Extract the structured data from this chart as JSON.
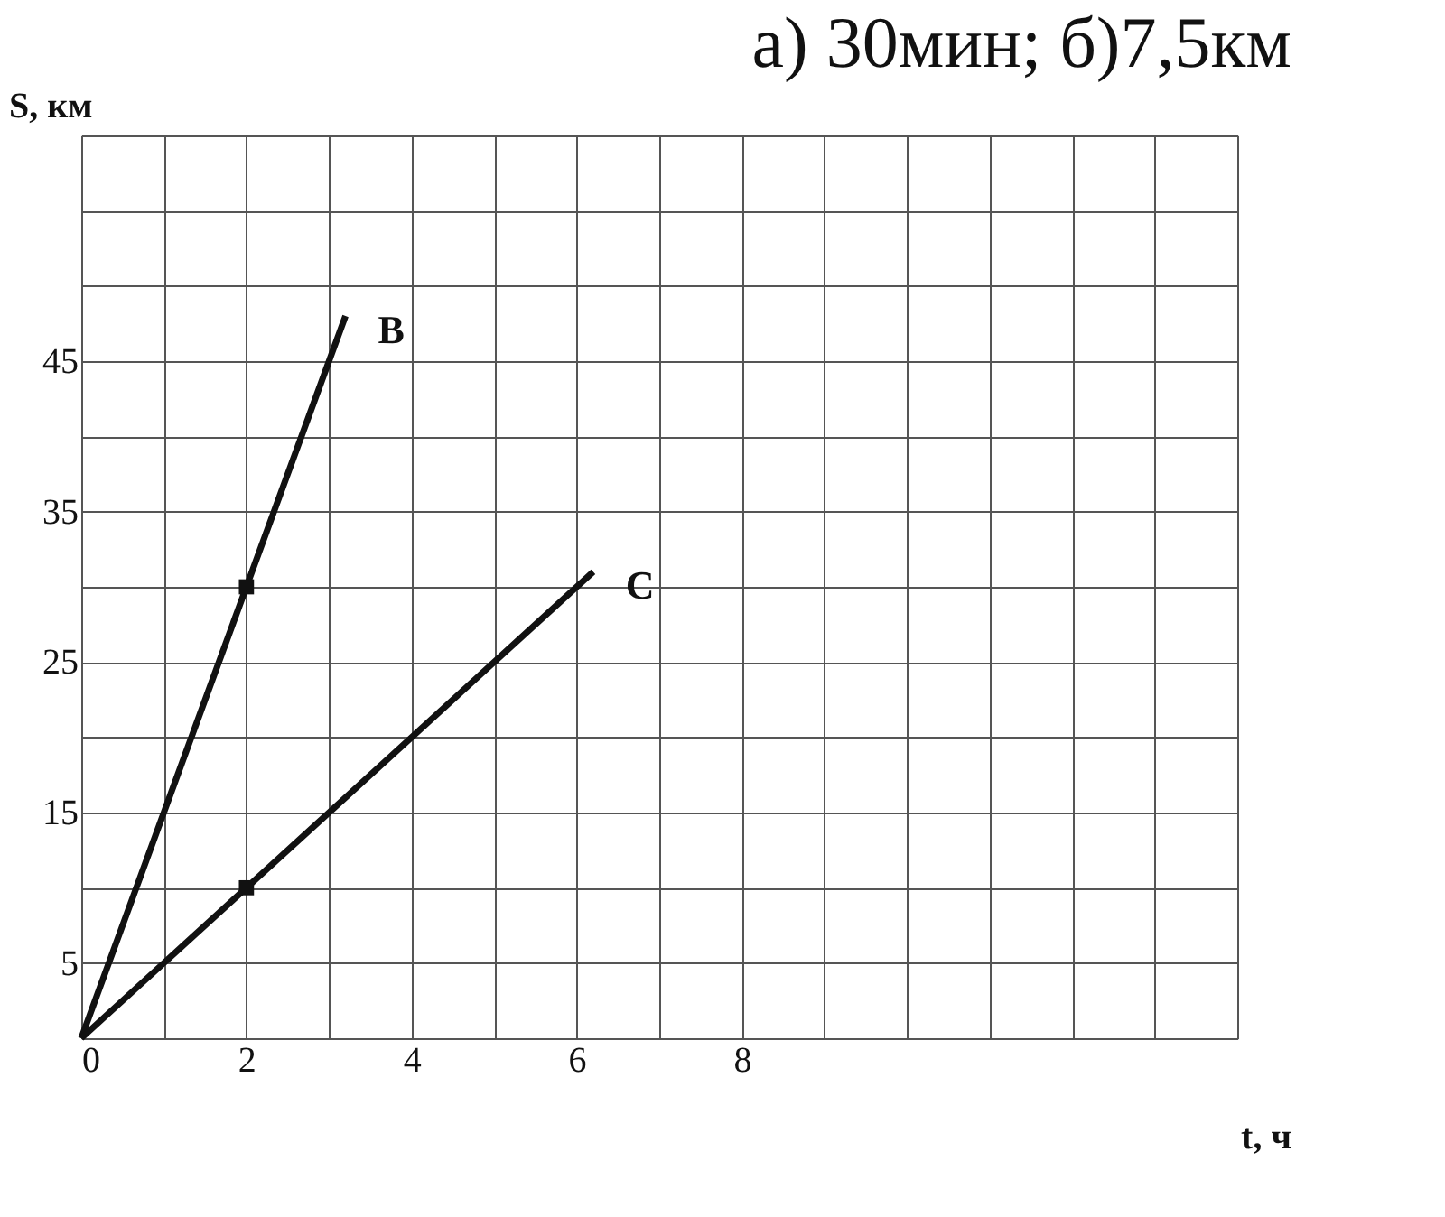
{
  "chart_data": {
    "type": "line",
    "title": "а) 30мин;   б)7,5км",
    "xlabel": "t, ч",
    "ylabel": "S, км",
    "xlim": [
      0,
      14
    ],
    "ylim": [
      0,
      60
    ],
    "xticks": [
      0,
      {
        "value": 1,
        "label": null
      },
      2,
      {
        "value": 3,
        "label": null
      },
      4,
      {
        "value": 5,
        "label": null
      },
      6,
      {
        "value": 7,
        "label": null
      },
      8,
      {
        "value": 9,
        "label": null
      },
      {
        "value": 10,
        "label": null
      },
      {
        "value": 11,
        "label": null
      },
      {
        "value": 12,
        "label": null
      },
      {
        "value": 13,
        "label": null
      },
      {
        "value": 14,
        "label": null
      }
    ],
    "yticks": [
      {
        "value": 0,
        "label": null
      },
      5,
      {
        "value": 10,
        "label": null
      },
      15,
      {
        "value": 20,
        "label": null
      },
      25,
      {
        "value": 30,
        "label": null
      },
      35,
      {
        "value": 40,
        "label": null
      },
      45,
      {
        "value": 50,
        "label": null
      },
      {
        "value": 55,
        "label": null
      },
      {
        "value": 60,
        "label": null
      }
    ],
    "grid": true,
    "marker": "none",
    "line_style": "solid",
    "series": [
      {
        "name": "B",
        "color": "#111111",
        "x": [
          0,
          2,
          3.2
        ],
        "values": [
          0,
          30,
          48
        ]
      },
      {
        "name": "C",
        "color": "#111111",
        "x": [
          0,
          2,
          6.2
        ],
        "values": [
          0,
          10,
          31
        ]
      },
      {
        "type": "scatter",
        "color": "#111111",
        "x": [
          2,
          2
        ],
        "values": [
          30,
          10
        ],
        "marker": "square"
      }
    ]
  }
}
